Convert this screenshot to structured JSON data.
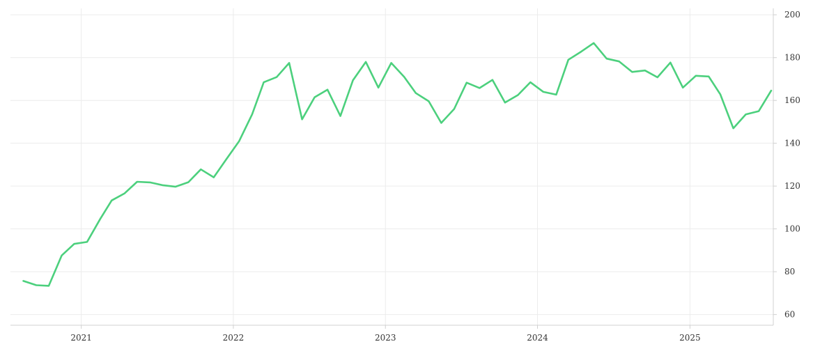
{
  "chart_data": {
    "type": "line",
    "title": "",
    "xlabel": "",
    "ylabel": "",
    "y_axis_position": "right",
    "grid": true,
    "ylim": [
      55,
      203
    ],
    "xlim": [
      "2020-07-15",
      "2025-07-20"
    ],
    "yticks": [
      60,
      80,
      100,
      120,
      140,
      160,
      180,
      200
    ],
    "xticks": [
      {
        "label": "2021",
        "date": "2021-01-01"
      },
      {
        "label": "2022",
        "date": "2022-01-01"
      },
      {
        "label": "2023",
        "date": "2023-01-01"
      },
      {
        "label": "2024",
        "date": "2024-01-01"
      },
      {
        "label": "2025",
        "date": "2025-01-01"
      }
    ],
    "line_color": "#4cd07d",
    "series": [
      {
        "x": [
          "2020-08",
          "2020-09",
          "2020-10",
          "2020-11",
          "2020-12",
          "2021-01",
          "2021-02",
          "2021-03",
          "2021-04",
          "2021-05",
          "2021-06",
          "2021-07",
          "2021-08",
          "2021-09",
          "2021-10",
          "2021-11",
          "2021-12",
          "2022-01",
          "2022-02",
          "2022-03",
          "2022-04",
          "2022-05",
          "2022-06",
          "2022-07",
          "2022-08",
          "2022-09",
          "2022-10",
          "2022-11",
          "2022-12",
          "2023-01",
          "2023-02",
          "2023-03",
          "2023-04",
          "2023-05",
          "2023-06",
          "2023-07",
          "2023-08",
          "2023-09",
          "2023-10",
          "2023-11",
          "2023-12",
          "2024-01",
          "2024-02",
          "2024-03",
          "2024-04",
          "2024-05",
          "2024-06",
          "2024-07",
          "2024-08",
          "2024-09",
          "2024-10",
          "2024-11",
          "2024-12",
          "2025-01",
          "2025-02",
          "2025-03",
          "2025-04",
          "2025-05",
          "2025-06",
          "2025-07"
        ],
        "values": [
          75.7,
          73.7,
          73.4,
          87.6,
          93.0,
          93.9,
          104.5,
          113.3,
          116.6,
          122.0,
          121.7,
          120.4,
          119.7,
          121.8,
          127.8,
          124.1,
          132.5,
          141.0,
          153.5,
          168.5,
          170.9,
          177.5,
          151.2,
          161.5,
          165.0,
          152.7,
          169.4,
          178.0,
          166.0,
          177.5,
          171.0,
          163.4,
          159.6,
          149.5,
          156.0,
          168.3,
          165.8,
          169.6,
          159.0,
          162.5,
          168.5,
          164.0,
          162.7,
          179.0,
          182.8,
          186.8,
          179.5,
          178.2,
          173.3,
          174.0,
          170.8,
          177.7,
          166.0,
          171.5,
          171.2,
          162.8,
          147.0,
          153.5,
          155.0,
          164.6
        ]
      }
    ]
  }
}
